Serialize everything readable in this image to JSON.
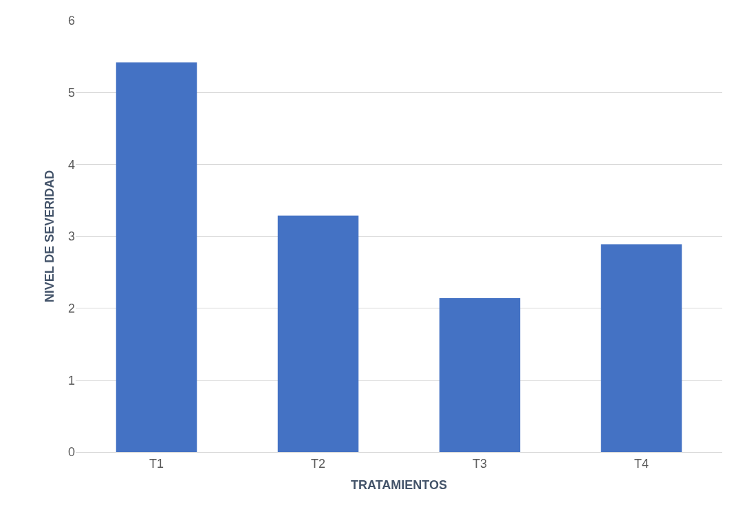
{
  "chart_data": {
    "type": "bar",
    "xlabel": "TRATAMIENTOS",
    "ylabel": "NIVEL DE SEVERIDAD",
    "categories": [
      "T1",
      "T2",
      "T3",
      "T4"
    ],
    "values": [
      5.42,
      3.29,
      2.14,
      2.89
    ],
    "color": "#4472c4",
    "ylim": [
      0,
      6
    ],
    "yticks": [
      0,
      1,
      2,
      3,
      4,
      5,
      6
    ],
    "grid": "y"
  }
}
